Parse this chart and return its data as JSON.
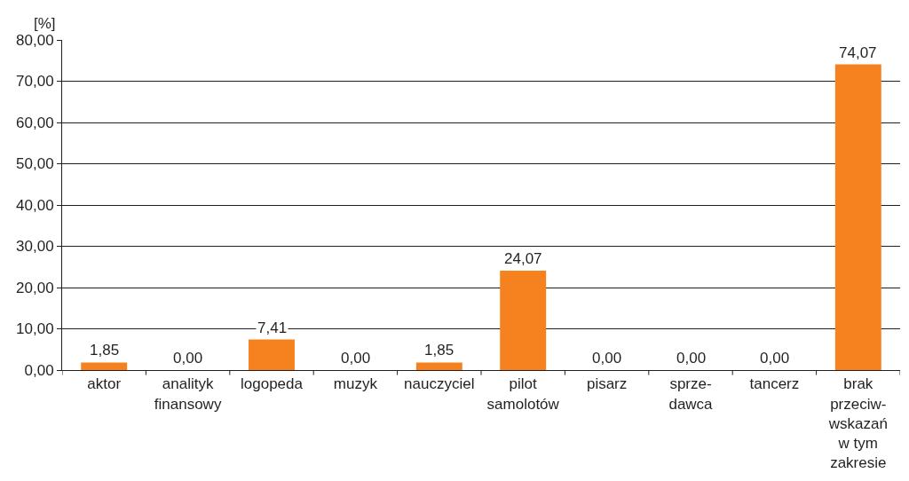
{
  "chart_data": {
    "type": "bar",
    "ylabel": "[%]",
    "categories": [
      "aktor",
      "analityk\nfinansowy",
      "logopeda",
      "muzyk",
      "nauczyciel",
      "pilot\nsamolotów",
      "pisarz",
      "sprze-\ndawca",
      "tancerz",
      "brak\nprzeciw-\nwskazań\nw tym\nzakresie"
    ],
    "values": [
      1.85,
      0.0,
      7.41,
      0.0,
      1.85,
      24.07,
      0.0,
      0.0,
      0.0,
      74.07
    ],
    "value_labels": [
      "1,85",
      "0,00",
      "7,41",
      "0,00",
      "1,85",
      "24,07",
      "0,00",
      "0,00",
      "0,00",
      "74,07"
    ],
    "color": "#f5821f",
    "ylim": [
      0,
      80
    ],
    "yticks": [
      {
        "value": 0,
        "label": "0,00"
      },
      {
        "value": 10,
        "label": "10,00"
      },
      {
        "value": 20,
        "label": "20,00"
      },
      {
        "value": 30,
        "label": "30,00"
      },
      {
        "value": 40,
        "label": "40,00"
      },
      {
        "value": 50,
        "label": "50,00"
      },
      {
        "value": 60,
        "label": "60,00"
      },
      {
        "value": 70,
        "label": "70,00"
      },
      {
        "value": 80,
        "label": "80,00"
      }
    ],
    "grid": "y",
    "legend": false
  }
}
